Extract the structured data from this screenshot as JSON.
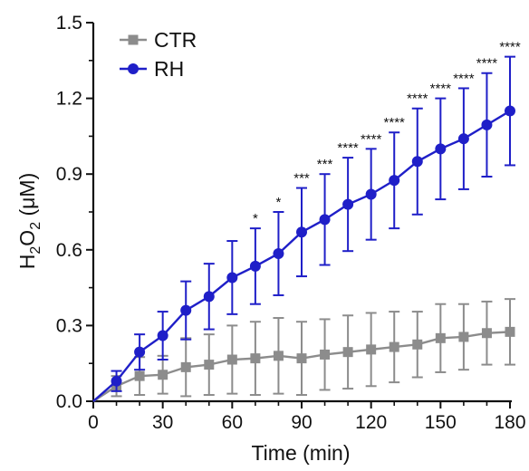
{
  "chart_data": {
    "type": "line",
    "xlabel": "Time (min)",
    "ylabel_parts": [
      "H",
      "2",
      "O",
      "2",
      " (μM)"
    ],
    "xlim": [
      0,
      180
    ],
    "ylim": [
      0,
      1.5
    ],
    "x_ticks": [
      0,
      30,
      60,
      90,
      120,
      150,
      180
    ],
    "y_ticks": [
      "0.0",
      "0.3",
      "0.6",
      "0.9",
      "1.2",
      "1.5"
    ],
    "x": [
      0,
      10,
      20,
      30,
      40,
      50,
      60,
      70,
      80,
      90,
      100,
      110,
      120,
      130,
      140,
      150,
      160,
      170,
      180
    ],
    "series": [
      {
        "name": "CTR",
        "marker": "square",
        "color": "#8c8c8c",
        "values": [
          0.0,
          0.06,
          0.1,
          0.105,
          0.135,
          0.145,
          0.165,
          0.17,
          0.18,
          0.17,
          0.185,
          0.195,
          0.205,
          0.215,
          0.225,
          0.25,
          0.255,
          0.27,
          0.275
        ],
        "errors": [
          0.0,
          0.04,
          0.075,
          0.075,
          0.115,
          0.12,
          0.135,
          0.145,
          0.15,
          0.145,
          0.14,
          0.145,
          0.145,
          0.14,
          0.13,
          0.135,
          0.13,
          0.125,
          0.13
        ]
      },
      {
        "name": "RH",
        "marker": "circle",
        "color": "#1f1fc8",
        "values": [
          0.0,
          0.08,
          0.195,
          0.26,
          0.36,
          0.415,
          0.49,
          0.535,
          0.585,
          0.67,
          0.72,
          0.78,
          0.82,
          0.875,
          0.95,
          1.0,
          1.04,
          1.095,
          1.15
        ],
        "errors": [
          0.0,
          0.04,
          0.07,
          0.095,
          0.115,
          0.13,
          0.145,
          0.15,
          0.165,
          0.175,
          0.18,
          0.185,
          0.18,
          0.19,
          0.21,
          0.2,
          0.2,
          0.205,
          0.215
        ]
      }
    ],
    "significance": [
      {
        "x": 70,
        "label": "*"
      },
      {
        "x": 80,
        "label": "*"
      },
      {
        "x": 90,
        "label": "***"
      },
      {
        "x": 100,
        "label": "***"
      },
      {
        "x": 110,
        "label": "****"
      },
      {
        "x": 120,
        "label": "****"
      },
      {
        "x": 130,
        "label": "****"
      },
      {
        "x": 140,
        "label": "****"
      },
      {
        "x": 150,
        "label": "****"
      },
      {
        "x": 160,
        "label": "****"
      },
      {
        "x": 170,
        "label": "****"
      },
      {
        "x": 180,
        "label": "****"
      }
    ],
    "legend": {
      "position": "top-left",
      "entries": [
        {
          "label": "CTR",
          "marker": "square",
          "color": "#8c8c8c"
        },
        {
          "label": "RH",
          "marker": "circle",
          "color": "#1f1fc8"
        }
      ]
    },
    "grid": false
  }
}
